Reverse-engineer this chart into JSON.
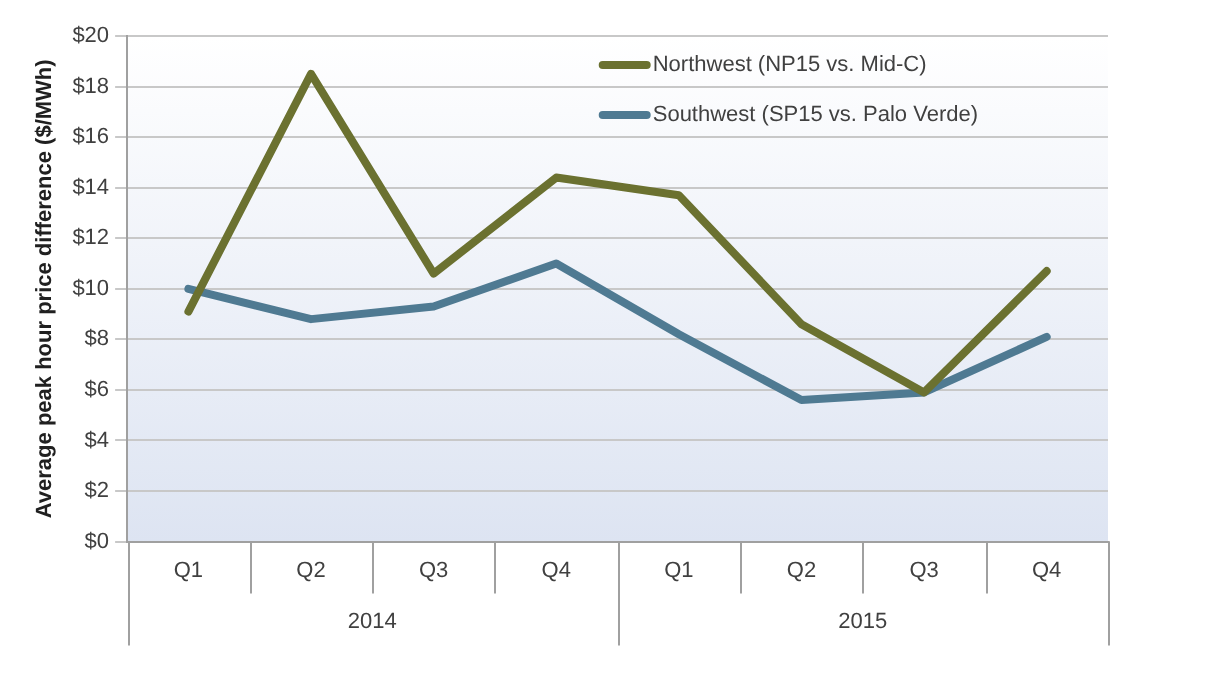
{
  "chart_data": {
    "type": "line",
    "ylabel": "Average peak hour price difference ($/MWh)",
    "categories": [
      "Q1",
      "Q2",
      "Q3",
      "Q4",
      "Q1",
      "Q2",
      "Q3",
      "Q4"
    ],
    "annotations": [
      "2014",
      "2015"
    ],
    "series": [
      {
        "name": "Northwest (NP15 vs. Mid-C)",
        "color": "#6b7130",
        "values": [
          9.1,
          18.5,
          10.6,
          14.4,
          13.7,
          8.6,
          5.9,
          10.7
        ]
      },
      {
        "name": "Southwest (SP15 vs. Palo Verde)",
        "color": "#4f7a92",
        "values": [
          10.0,
          8.8,
          9.3,
          11.0,
          8.2,
          5.6,
          5.9,
          8.1
        ]
      }
    ],
    "ylim": [
      0,
      20
    ],
    "yticks": [
      {
        "value": 0,
        "label": "$0"
      },
      {
        "value": 2,
        "label": "$2"
      },
      {
        "value": 4,
        "label": "$4"
      },
      {
        "value": 6,
        "label": "$6"
      },
      {
        "value": 8,
        "label": "$8"
      },
      {
        "value": 10,
        "label": "$10"
      },
      {
        "value": 12,
        "label": "$12"
      },
      {
        "value": 14,
        "label": "$14"
      },
      {
        "value": 16,
        "label": "$16"
      },
      {
        "value": 18,
        "label": "$18"
      },
      {
        "value": 20,
        "label": "$20"
      }
    ],
    "grid": "y",
    "legend": "top right",
    "marker": "none",
    "line_style": "solid"
  }
}
